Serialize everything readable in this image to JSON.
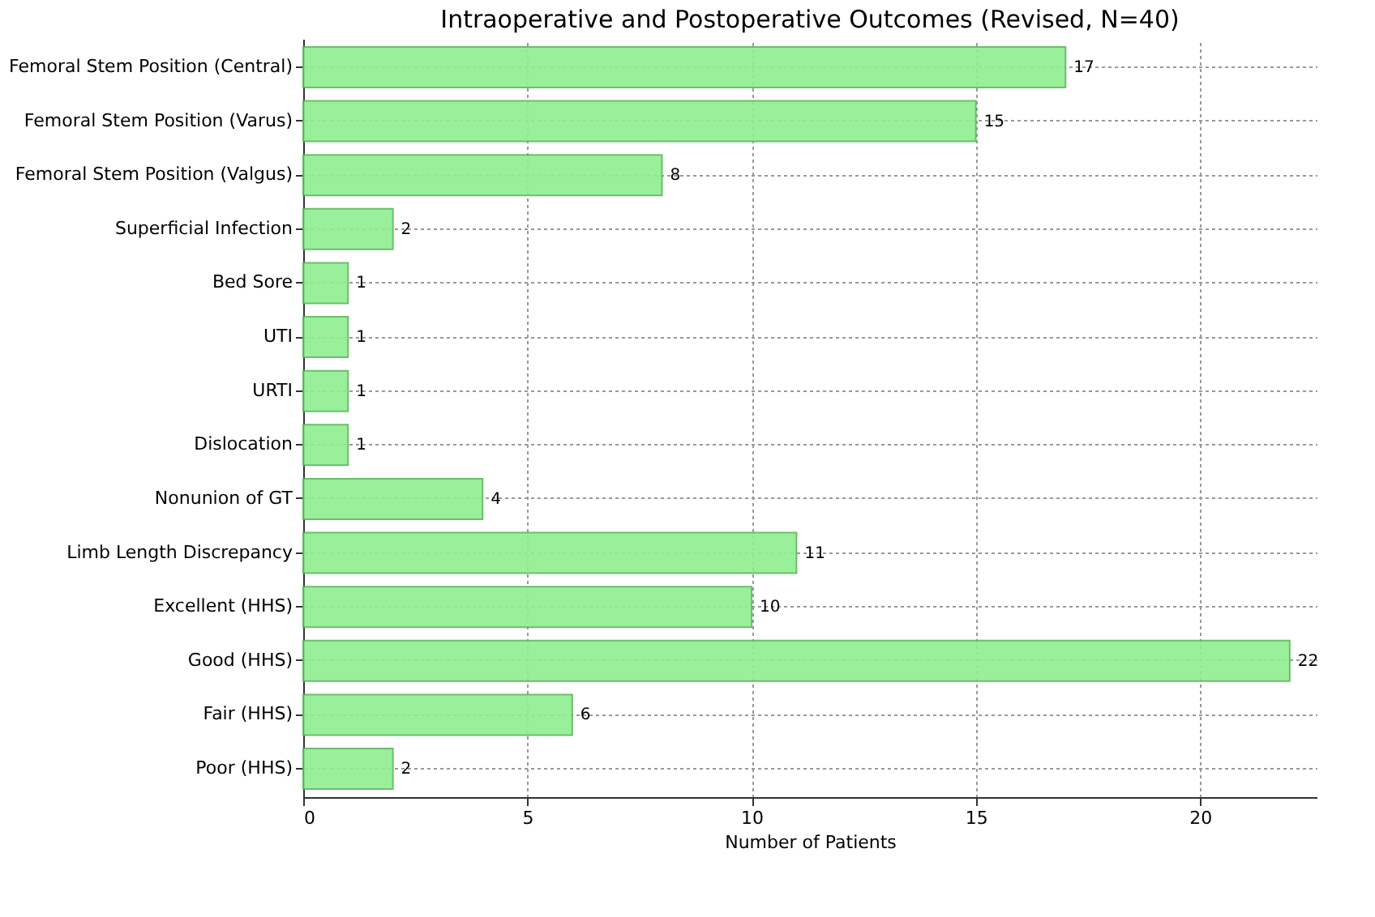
{
  "chart_data": {
    "type": "bar",
    "orientation": "horizontal",
    "title": "Intraoperative and Postoperative Outcomes (Revised, N=40)",
    "xlabel": "Number of Patients",
    "categories": [
      "Femoral Stem Position (Central)",
      "Femoral Stem Position (Varus)",
      "Femoral Stem Position (Valgus)",
      "Superficial Infection",
      "Bed Sore",
      "UTI",
      "URTI",
      "Dislocation",
      "Nonunion of GT",
      "Limb Length Discrepancy",
      "Excellent (HHS)",
      "Good (HHS)",
      "Fair (HHS)",
      "Poor (HHS)"
    ],
    "values": [
      17,
      15,
      8,
      2,
      1,
      1,
      1,
      1,
      4,
      11,
      10,
      22,
      6,
      2
    ],
    "color": "#90ee90",
    "xlim": [
      0,
      22.6
    ],
    "xticks": [
      0,
      5,
      10,
      15,
      20
    ],
    "grid": true,
    "data_labels": true
  }
}
